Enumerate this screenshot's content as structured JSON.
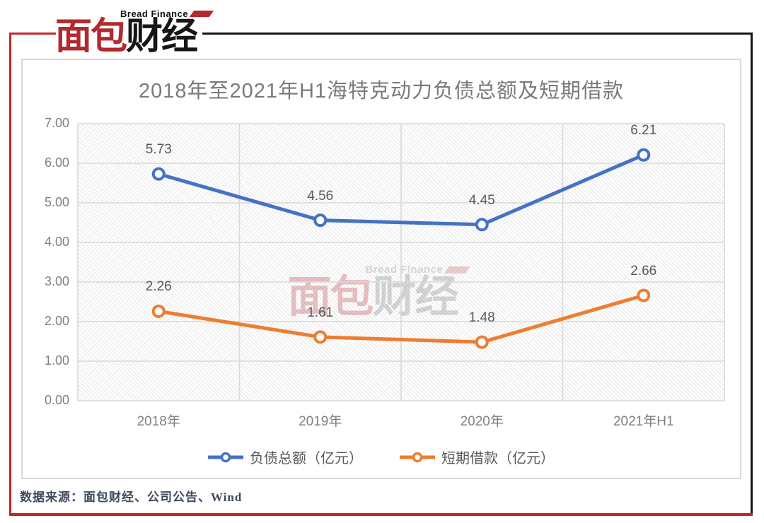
{
  "logo": {
    "tagline": "Bread Finance",
    "name_primary": "面包",
    "name_secondary": "财经"
  },
  "watermark": {
    "tagline": "Bread Finance",
    "name_primary": "面包",
    "name_secondary": "财经"
  },
  "chart_data": {
    "type": "line",
    "title": "2018年至2021年H1海特克动力负债总额及短期借款",
    "categories": [
      "2018年",
      "2019年",
      "2020年",
      "2021年H1"
    ],
    "series": [
      {
        "name": "负债总额（亿元）",
        "color": "#4472C4",
        "values": [
          5.73,
          4.56,
          4.45,
          6.21
        ]
      },
      {
        "name": "短期借款（亿元）",
        "color": "#ED7D31",
        "values": [
          2.26,
          1.61,
          1.48,
          2.66
        ]
      }
    ],
    "ylim": [
      0,
      7
    ],
    "ytick_step": 1,
    "tick_decimals": 2,
    "grid": true,
    "legend_position": "bottom",
    "plot_background": "diagonal-hatch"
  },
  "source_note": "数据来源：面包财经、公司公告、Wind",
  "colors": {
    "series_1": "#4472C4",
    "series_2": "#ED7D31",
    "title_text": "#7A7A7A",
    "axis_text": "#808080",
    "data_label_text": "#595959",
    "gridline": "#D9D9D9",
    "frame_red": "#C5262C",
    "frame_black": "#161616",
    "logo_red": "#B2292E",
    "logo_black": "#161616",
    "source_text": "#3F4A5F"
  }
}
